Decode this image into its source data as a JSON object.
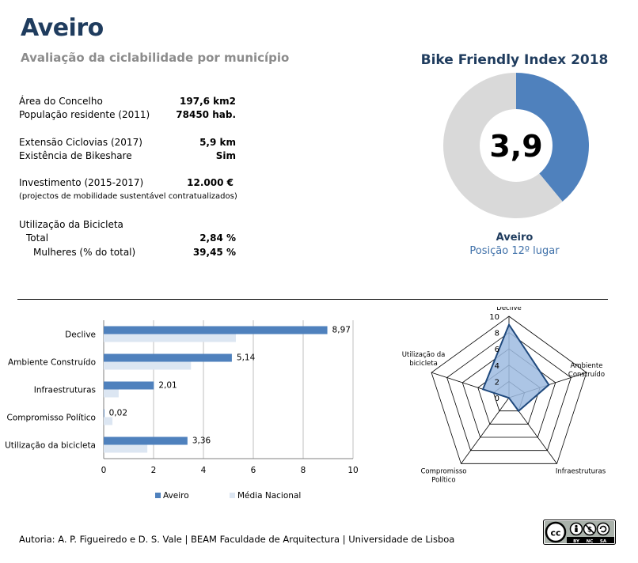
{
  "header": {
    "title": "Aveiro",
    "subtitle": "Avaliação da ciclabilidade por município"
  },
  "info": {
    "area_label": "Área do Concelho",
    "area_value": "197,6 km2",
    "pop_label": "População residente (2011)",
    "pop_value": "78450 hab.",
    "ciclovias_label": "Extensão Ciclovias (2017)",
    "ciclovias_value": "5,9 km",
    "bikeshare_label": "Existência de Bikeshare",
    "bikeshare_value": "Sim",
    "invest_label": "Investimento (2015-2017)",
    "invest_value": "12.000 €",
    "invest_note": "(projectos de mobilidade sustentável contratualizados)",
    "util_label": "Utilização da Bicicleta",
    "total_label": "Total",
    "total_value": "2,84 %",
    "women_label": "Mulheres (% do total)",
    "women_value": "39,45 %"
  },
  "index": {
    "title": "Bike Friendly Index 2018",
    "score": "3,9",
    "city": "Aveiro",
    "position": "Posição 12º lugar"
  },
  "footer": {
    "credit": "Autoria: A. P. Figueiredo e D. S. Vale | BEAM Faculdade de Arquitectura | Universidade de Lisboa",
    "license_labels": [
      "BY",
      "NC",
      "SA"
    ]
  },
  "colors": {
    "title": "#1f3c5e",
    "aveiro": "#4f81bd",
    "nacional": "#dce6f2",
    "donut_rest": "#d9d9d9",
    "radar_fill": "#9dbbe0",
    "radar_line": "#1f497d"
  },
  "chart_data": [
    {
      "type": "pie",
      "values": [
        3.9,
        6.1
      ],
      "max": 10
    },
    {
      "type": "bar",
      "orientation": "horizontal",
      "categories": [
        "Declive",
        "Ambiente Construído",
        "Infraestruturas",
        "Compromisso Político",
        "Utilização da bicicleta"
      ],
      "series": [
        {
          "name": "Aveiro",
          "values": [
            8.97,
            5.14,
            2.01,
            0.02,
            3.36
          ],
          "labels": [
            "8,97",
            "5,14",
            "2,01",
            "0,02",
            "3,36"
          ]
        },
        {
          "name": "Média Nacional",
          "values": [
            5.3,
            3.5,
            0.6,
            0.35,
            1.75
          ]
        }
      ],
      "xlim": [
        0,
        10
      ],
      "xticks": [
        "0",
        "2",
        "4",
        "6",
        "8",
        "10"
      ],
      "grid": true,
      "legend": "bottom"
    },
    {
      "type": "radar",
      "axes": [
        "Declive",
        "Ambiente Construído",
        "Infraestruturas",
        "Compromisso Político",
        "Utilização da bicicleta"
      ],
      "values": [
        8.97,
        5.14,
        2.01,
        0.02,
        3.36
      ],
      "rmax": 10,
      "rticks": [
        "0",
        "2",
        "4",
        "6",
        "8",
        "10"
      ]
    }
  ]
}
